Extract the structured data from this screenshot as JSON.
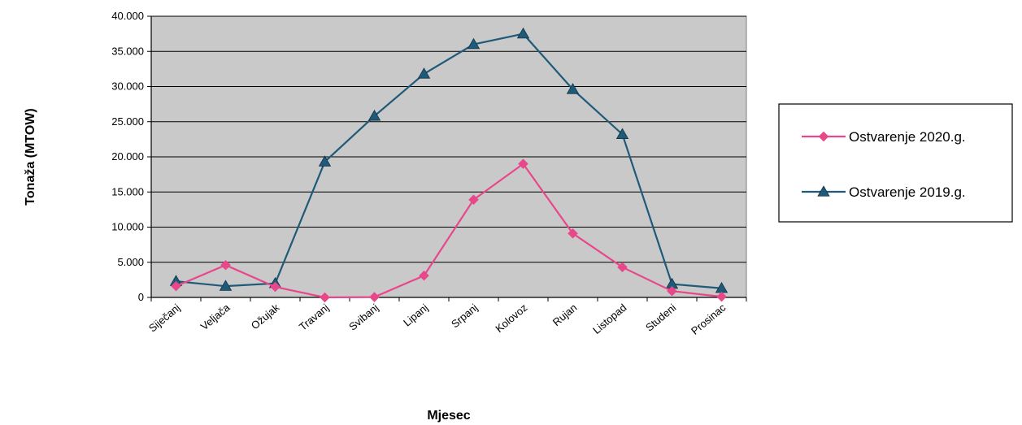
{
  "chart_data": {
    "type": "line",
    "title": "",
    "xlabel": "Mjesec",
    "ylabel": "Tonaža (MTOW)",
    "categories": [
      "Siječanj",
      "Veljača",
      "Ožujak",
      "Travanj",
      "Svibanj",
      "Lipanj",
      "Srpanj",
      "Kolovoz",
      "Rujan",
      "Listopad",
      "Studeni",
      "Prosinac"
    ],
    "y_ticks": [
      "0",
      "5.000",
      "10.000",
      "15.000",
      "20.000",
      "25.000",
      "30.000",
      "35.000",
      "40.000"
    ],
    "ylim": [
      0,
      40000
    ],
    "grid": true,
    "legend_position": "right",
    "series": [
      {
        "name": "Ostvarenje 2020.g.",
        "color": "#e8478a",
        "marker": "diamond",
        "values": [
          1600,
          4600,
          1500,
          0,
          50,
          3100,
          13900,
          19000,
          9100,
          4300,
          900,
          100
        ]
      },
      {
        "name": "Ostvarenje 2019.g.",
        "color": "#1f5a78",
        "marker": "triangle",
        "values": [
          2300,
          1600,
          2000,
          19300,
          25800,
          31800,
          36000,
          37500,
          29600,
          23200,
          1900,
          1300
        ]
      }
    ]
  }
}
